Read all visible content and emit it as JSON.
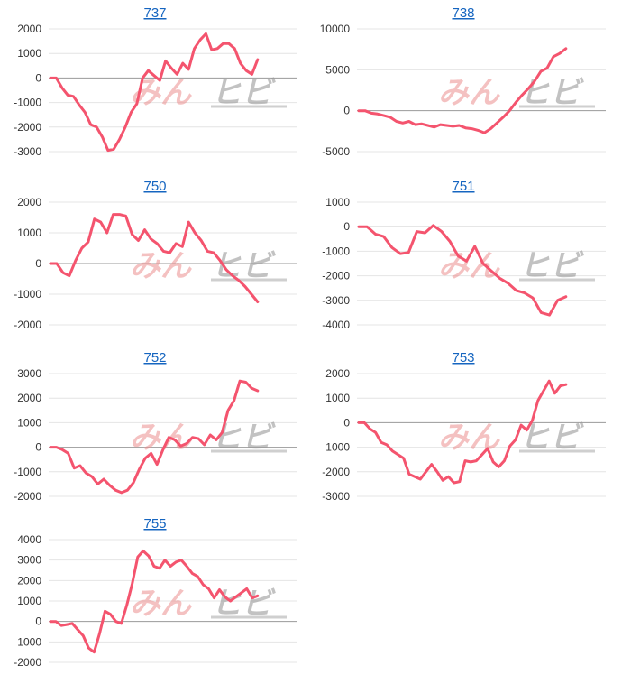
{
  "colors": {
    "line": "#f4546e",
    "title_link": "#1565c0",
    "grid": "#e4e4e4",
    "axis": "#9a9a9a"
  },
  "watermark": {
    "left_text": "みん",
    "right_text": "ヒビ"
  },
  "chart_data": [
    {
      "type": "line",
      "title": "737",
      "ylim": [
        -3000,
        2000
      ],
      "yticks": [
        "2000",
        "1000",
        "0",
        "-1000",
        "-2000",
        "-3000"
      ],
      "series": [
        {
          "values": [
            0,
            0,
            -400,
            -700,
            -750,
            -1100,
            -1400,
            -1900,
            -2000,
            -2400,
            -2950,
            -2900,
            -2500,
            -2000,
            -1400,
            -1050,
            0,
            300,
            100,
            -100,
            700,
            400,
            150,
            600,
            350,
            1200,
            1550,
            1800,
            1150,
            1200,
            1400,
            1400,
            1200,
            600,
            300,
            150,
            750
          ]
        }
      ]
    },
    {
      "type": "line",
      "title": "738",
      "ylim": [
        -5000,
        10000
      ],
      "yticks": [
        "10000",
        "5000",
        "0",
        "-5000"
      ],
      "series": [
        {
          "values": [
            0,
            0,
            -300,
            -400,
            -600,
            -800,
            -1300,
            -1500,
            -1300,
            -1700,
            -1600,
            -1800,
            -2000,
            -1700,
            -1800,
            -1900,
            -1800,
            -2100,
            -2200,
            -2400,
            -2700,
            -2200,
            -1500,
            -800,
            0,
            1000,
            1900,
            2700,
            3600,
            4800,
            5200,
            6600,
            7000,
            7600
          ]
        }
      ]
    },
    {
      "type": "line",
      "title": "750",
      "ylim": [
        -2000,
        2000
      ],
      "yticks": [
        "2000",
        "1000",
        "0",
        "-1000",
        "-2000"
      ],
      "series": [
        {
          "values": [
            0,
            0,
            -300,
            -400,
            100,
            500,
            700,
            1450,
            1350,
            1000,
            1600,
            1600,
            1550,
            950,
            750,
            1100,
            800,
            650,
            400,
            350,
            650,
            550,
            1350,
            1000,
            750,
            400,
            350,
            100,
            -200,
            -400,
            -550,
            -750,
            -1000,
            -1250
          ]
        }
      ]
    },
    {
      "type": "line",
      "title": "751",
      "ylim": [
        -4000,
        1000
      ],
      "yticks": [
        "1000",
        "0",
        "-1000",
        "-2000",
        "-3000",
        "-4000"
      ],
      "series": [
        {
          "values": [
            0,
            0,
            -300,
            -400,
            -850,
            -1100,
            -1050,
            -200,
            -250,
            50,
            -200,
            -600,
            -1200,
            -1400,
            -800,
            -1500,
            -1800,
            -2100,
            -2300,
            -2600,
            -2700,
            -2900,
            -3500,
            -3600,
            -3000,
            -2850
          ]
        }
      ]
    },
    {
      "type": "line",
      "title": "752",
      "ylim": [
        -2000,
        3000
      ],
      "yticks": [
        "3000",
        "2000",
        "1000",
        "0",
        "-1000",
        "-2000"
      ],
      "series": [
        {
          "values": [
            0,
            0,
            -100,
            -250,
            -850,
            -750,
            -1050,
            -1200,
            -1500,
            -1300,
            -1550,
            -1750,
            -1850,
            -1750,
            -1450,
            -900,
            -450,
            -250,
            -700,
            -100,
            400,
            300,
            50,
            150,
            400,
            350,
            100,
            500,
            300,
            600,
            1500,
            1900,
            2700,
            2650,
            2400,
            2300
          ]
        }
      ]
    },
    {
      "type": "line",
      "title": "753",
      "ylim": [
        -3000,
        2000
      ],
      "yticks": [
        "2000",
        "1000",
        "0",
        "-1000",
        "-2000",
        "-3000"
      ],
      "series": [
        {
          "values": [
            0,
            0,
            -250,
            -400,
            -800,
            -900,
            -1150,
            -1300,
            -1450,
            -2100,
            -2200,
            -2300,
            -2000,
            -1700,
            -2000,
            -2350,
            -2200,
            -2450,
            -2400,
            -1550,
            -1600,
            -1550,
            -1300,
            -1050,
            -1600,
            -1800,
            -1550,
            -950,
            -700,
            -100,
            -300,
            100,
            900,
            1300,
            1700,
            1200,
            1500,
            1550
          ]
        }
      ]
    },
    {
      "type": "line",
      "title": "755",
      "ylim": [
        -2000,
        4000
      ],
      "yticks": [
        "4000",
        "3000",
        "2000",
        "1000",
        "0",
        "-1000",
        "-2000"
      ],
      "series": [
        {
          "values": [
            0,
            0,
            -200,
            -150,
            -100,
            -400,
            -700,
            -1300,
            -1500,
            -600,
            500,
            350,
            0,
            -100,
            800,
            1850,
            3150,
            3450,
            3200,
            2700,
            2600,
            3000,
            2700,
            2900,
            3000,
            2700,
            2350,
            2200,
            1800,
            1600,
            1150,
            1550,
            1200,
            1000,
            1200,
            1400,
            1600,
            1150,
            1250
          ]
        }
      ]
    }
  ]
}
